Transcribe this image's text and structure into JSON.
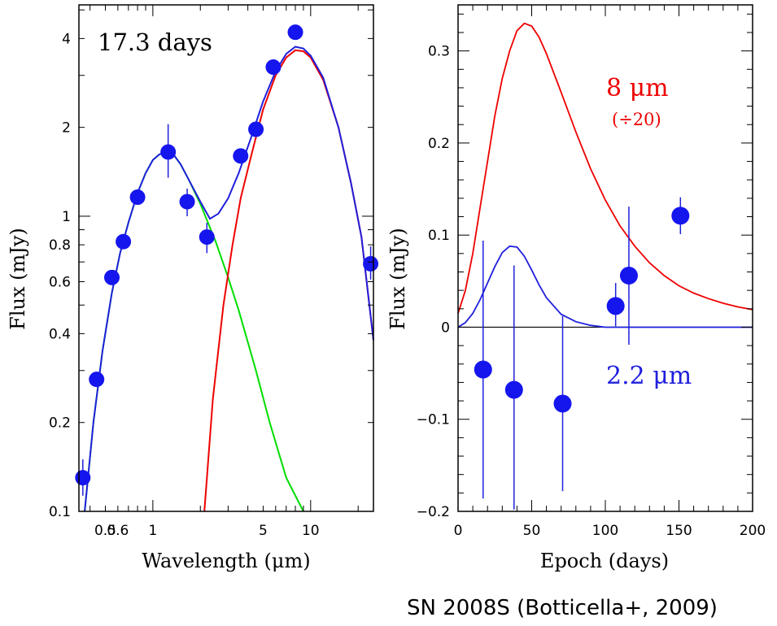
{
  "caption": "SN 2008S (Botticella+, 2009)",
  "chart_data": [
    {
      "type": "scatter",
      "annotation": "17.3 days",
      "xlabel": "Wavelength (μm)",
      "ylabel": "Flux (mJy)",
      "xscale": "log",
      "yscale": "log",
      "xlim": [
        0.34,
        25
      ],
      "ylim": [
        0.1,
        5.2
      ],
      "xticks": [
        {
          "value": 0.5,
          "label": "0.5"
        },
        {
          "value": 0.6,
          "label": "0.6"
        },
        {
          "value": 1,
          "label": "1"
        },
        {
          "value": 5,
          "label": "5"
        },
        {
          "value": 10,
          "label": "10"
        }
      ],
      "yticks": [
        {
          "value": 0.1,
          "label": "0.1"
        },
        {
          "value": 0.2,
          "label": "0.2"
        },
        {
          "value": 0.4,
          "label": "0.4"
        },
        {
          "value": 0.6,
          "label": "0.6"
        },
        {
          "value": 0.8,
          "label": "0.8"
        },
        {
          "value": 1,
          "label": "1"
        },
        {
          "value": 2,
          "label": "2"
        },
        {
          "value": 4,
          "label": "4"
        }
      ],
      "points": [
        {
          "x": 0.36,
          "y": 0.13,
          "yerr": [
            0.017,
            0.02
          ]
        },
        {
          "x": 0.44,
          "y": 0.28
        },
        {
          "x": 0.55,
          "y": 0.62
        },
        {
          "x": 0.65,
          "y": 0.82
        },
        {
          "x": 0.8,
          "y": 1.16
        },
        {
          "x": 1.25,
          "y": 1.65,
          "yerr": [
            0.3,
            0.4
          ]
        },
        {
          "x": 1.65,
          "y": 1.12,
          "yerr": [
            0.12,
            0.12
          ]
        },
        {
          "x": 2.2,
          "y": 0.85,
          "yerr": [
            0.1,
            0.1
          ]
        },
        {
          "x": 3.6,
          "y": 1.6
        },
        {
          "x": 4.5,
          "y": 1.97
        },
        {
          "x": 5.8,
          "y": 3.2
        },
        {
          "x": 8.0,
          "y": 4.2
        },
        {
          "x": 24.0,
          "y": 0.69,
          "yerr": [
            0.08,
            0.1
          ]
        }
      ],
      "curves": [
        {
          "color": "#00dd00",
          "points": [
            [
              0.37,
              0.1
            ],
            [
              0.42,
              0.2
            ],
            [
              0.48,
              0.35
            ],
            [
              0.55,
              0.55
            ],
            [
              0.62,
              0.75
            ],
            [
              0.7,
              0.95
            ],
            [
              0.8,
              1.2
            ],
            [
              0.9,
              1.4
            ],
            [
              1.0,
              1.55
            ],
            [
              1.1,
              1.62
            ],
            [
              1.2,
              1.64
            ],
            [
              1.35,
              1.62
            ],
            [
              1.5,
              1.5
            ],
            [
              1.7,
              1.32
            ],
            [
              2.0,
              1.1
            ],
            [
              2.5,
              0.82
            ],
            [
              3.0,
              0.62
            ],
            [
              3.5,
              0.48
            ],
            [
              4.5,
              0.3
            ],
            [
              5.5,
              0.2
            ],
            [
              7.0,
              0.13
            ],
            [
              9.0,
              0.1
            ]
          ]
        },
        {
          "color": "#ee0000",
          "points": [
            [
              2.12,
              0.1
            ],
            [
              2.4,
              0.24
            ],
            [
              2.8,
              0.5
            ],
            [
              3.2,
              0.8
            ],
            [
              3.6,
              1.15
            ],
            [
              4.2,
              1.6
            ],
            [
              5.0,
              2.3
            ],
            [
              6.0,
              3.0
            ],
            [
              7.0,
              3.45
            ],
            [
              8.0,
              3.65
            ],
            [
              9.0,
              3.62
            ],
            [
              10.0,
              3.45
            ],
            [
              12.0,
              2.9
            ],
            [
              15.0,
              2.0
            ],
            [
              18.0,
              1.3
            ],
            [
              21.0,
              0.85
            ],
            [
              25.0,
              0.38
            ]
          ]
        },
        {
          "color": "#2020dd",
          "points": [
            [
              0.37,
              0.1
            ],
            [
              0.42,
              0.2
            ],
            [
              0.48,
              0.35
            ],
            [
              0.55,
              0.55
            ],
            [
              0.62,
              0.75
            ],
            [
              0.7,
              0.95
            ],
            [
              0.8,
              1.2
            ],
            [
              0.9,
              1.4
            ],
            [
              1.0,
              1.55
            ],
            [
              1.1,
              1.62
            ],
            [
              1.2,
              1.64
            ],
            [
              1.35,
              1.62
            ],
            [
              1.5,
              1.5
            ],
            [
              1.7,
              1.32
            ],
            [
              2.0,
              1.12
            ],
            [
              2.3,
              0.98
            ],
            [
              2.6,
              1.02
            ],
            [
              3.0,
              1.15
            ],
            [
              3.5,
              1.4
            ],
            [
              4.2,
              1.85
            ],
            [
              5.0,
              2.45
            ],
            [
              6.0,
              3.1
            ],
            [
              7.0,
              3.55
            ],
            [
              8.0,
              3.75
            ],
            [
              9.0,
              3.7
            ],
            [
              10.0,
              3.5
            ],
            [
              12.0,
              2.95
            ],
            [
              15.0,
              2.0
            ],
            [
              18.0,
              1.3
            ],
            [
              21.0,
              0.85
            ],
            [
              25.0,
              0.38
            ]
          ]
        }
      ]
    },
    {
      "type": "scatter",
      "xlabel": "Epoch (days)",
      "ylabel": "Flux (mJy)",
      "xlim": [
        0,
        200
      ],
      "ylim": [
        -0.2,
        0.35
      ],
      "xticks": [
        {
          "value": 0,
          "label": "0"
        },
        {
          "value": 50,
          "label": "50"
        },
        {
          "value": 100,
          "label": "100"
        },
        {
          "value": 150,
          "label": "150"
        },
        {
          "value": 200,
          "label": "200"
        }
      ],
      "yticks": [
        {
          "value": -0.2,
          "label": "−0.2"
        },
        {
          "value": -0.1,
          "label": "−0.1"
        },
        {
          "value": 0,
          "label": "0"
        },
        {
          "value": 0.1,
          "label": "0.1"
        },
        {
          "value": 0.2,
          "label": "0.2"
        },
        {
          "value": 0.3,
          "label": "0.3"
        }
      ],
      "zero_line": true,
      "points": [
        {
          "x": 17,
          "y": -0.046,
          "yerr": [
            0.14,
            0.14
          ]
        },
        {
          "x": 38,
          "y": -0.068,
          "yerr": [
            0.13,
            0.135
          ]
        },
        {
          "x": 71,
          "y": -0.083,
          "yerr": [
            0.095,
            0.095
          ]
        },
        {
          "x": 107,
          "y": 0.023,
          "yerr": [
            0.022,
            0.025
          ]
        },
        {
          "x": 116,
          "y": 0.056,
          "yerr": [
            0.075,
            0.075
          ]
        },
        {
          "x": 151,
          "y": 0.121,
          "yerr": [
            0.02,
            0.02
          ]
        }
      ],
      "curves": [
        {
          "color": "#ee0000",
          "label_main": "8 μm",
          "label_sub": "(÷20)",
          "points": [
            [
              0,
              0.015
            ],
            [
              5,
              0.04
            ],
            [
              10,
              0.08
            ],
            [
              15,
              0.13
            ],
            [
              20,
              0.18
            ],
            [
              25,
              0.23
            ],
            [
              30,
              0.27
            ],
            [
              35,
              0.3
            ],
            [
              40,
              0.322
            ],
            [
              45,
              0.33
            ],
            [
              50,
              0.327
            ],
            [
              55,
              0.315
            ],
            [
              60,
              0.297
            ],
            [
              70,
              0.255
            ],
            [
              80,
              0.212
            ],
            [
              90,
              0.172
            ],
            [
              100,
              0.138
            ],
            [
              110,
              0.11
            ],
            [
              120,
              0.088
            ],
            [
              130,
              0.07
            ],
            [
              140,
              0.056
            ],
            [
              150,
              0.045
            ],
            [
              160,
              0.037
            ],
            [
              170,
              0.031
            ],
            [
              180,
              0.026
            ],
            [
              190,
              0.022
            ],
            [
              200,
              0.019
            ]
          ]
        },
        {
          "color": "#2020dd",
          "label_main": "2.2 μm",
          "points": [
            [
              0,
              0.0
            ],
            [
              5,
              0.005
            ],
            [
              10,
              0.015
            ],
            [
              15,
              0.03
            ],
            [
              20,
              0.048
            ],
            [
              25,
              0.066
            ],
            [
              30,
              0.081
            ],
            [
              35,
              0.088
            ],
            [
              40,
              0.087
            ],
            [
              45,
              0.077
            ],
            [
              50,
              0.062
            ],
            [
              55,
              0.046
            ],
            [
              60,
              0.032
            ],
            [
              70,
              0.014
            ],
            [
              80,
              0.006
            ],
            [
              90,
              0.002
            ],
            [
              100,
              0.0
            ],
            [
              120,
              0.0
            ],
            [
              150,
              0.0
            ],
            [
              200,
              0.0
            ]
          ]
        }
      ]
    }
  ]
}
